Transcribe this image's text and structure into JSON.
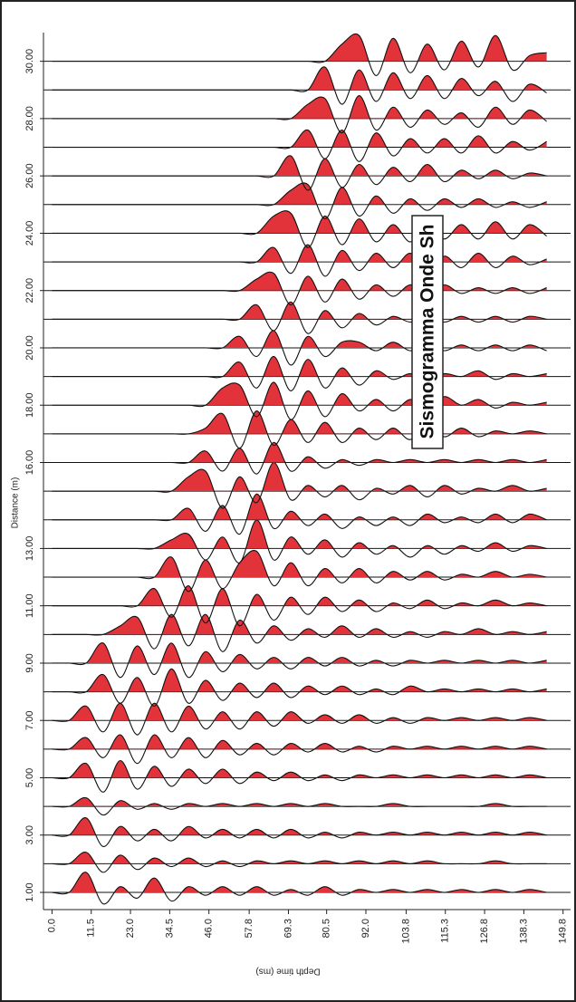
{
  "chart_data": {
    "type": "seismogram",
    "title": "Sismogramma Onde Sh",
    "x_label": "Depth time (ms)",
    "y_label": "Distance (m)",
    "xlim": [
      -2.5,
      152
    ],
    "ylim": [
      0.4,
      31
    ],
    "xticks": [
      {
        "value": 0,
        "label": "0.0"
      },
      11.5,
      {
        "value": 23,
        "label": "23.0"
      },
      34.5,
      {
        "value": 46,
        "label": "46.0"
      },
      57.8,
      69.3,
      80.5,
      {
        "value": 92,
        "label": "92.0"
      },
      103.8,
      115.3,
      126.8,
      138.3,
      149.8
    ],
    "yticks": [
      {
        "value": 1,
        "label": "1.00"
      },
      {
        "value": 3,
        "label": "3.00"
      },
      {
        "value": 5,
        "label": "5.00"
      },
      {
        "value": 7,
        "label": "7.00"
      },
      {
        "value": 9,
        "label": "9.00"
      },
      {
        "value": 11,
        "label": "11.00"
      },
      {
        "value": 13,
        "label": "13.00"
      },
      {
        "value": 16,
        "label": "16.00"
      },
      {
        "value": 18,
        "label": "18.00"
      },
      {
        "value": 20,
        "label": "20.00"
      },
      {
        "value": 22,
        "label": "22.00"
      },
      {
        "value": 24,
        "label": "24.00"
      },
      {
        "value": 26,
        "label": "26.00"
      },
      {
        "value": 28,
        "label": "28.00"
      },
      {
        "value": 30,
        "label": "30.00"
      }
    ],
    "fill_color": "#e2333b",
    "line_color": "#111111",
    "x": [
      0,
      5,
      10,
      15,
      20,
      25,
      30,
      35,
      40,
      45,
      50,
      55,
      60,
      65,
      70,
      75,
      80,
      85,
      90,
      95,
      100,
      105,
      110,
      115,
      120,
      125,
      130,
      135,
      140,
      145
    ],
    "series": [
      {
        "offset": 1,
        "values": [
          0,
          0,
          0.7,
          -0.4,
          0.2,
          -0.2,
          0.5,
          -0.3,
          0.2,
          -0.1,
          0.2,
          -0.1,
          0.2,
          -0.1,
          0.1,
          -0.1,
          0.2,
          -0.1,
          0.1,
          0,
          0.1,
          0,
          0.1,
          0,
          0.1,
          0,
          0.1,
          0,
          0.1,
          0
        ]
      },
      {
        "offset": 2,
        "values": [
          0,
          0,
          0.4,
          -0.3,
          0.3,
          -0.2,
          0.2,
          -0.1,
          0.2,
          -0.1,
          0.1,
          -0.1,
          0.1,
          0,
          0.1,
          0,
          0.1,
          0,
          0.1,
          0,
          0.1,
          0,
          0.1,
          0,
          0,
          0,
          0.1,
          0,
          0,
          0
        ]
      },
      {
        "offset": 3,
        "values": [
          0,
          0,
          0.6,
          -0.4,
          0.3,
          -0.2,
          0.2,
          -0.2,
          0.3,
          -0.1,
          0.2,
          -0.1,
          0.2,
          -0.1,
          0.2,
          -0.1,
          0.1,
          -0.1,
          0.1,
          0,
          0.1,
          0,
          0.1,
          0,
          0.1,
          0,
          0.1,
          0,
          0.1,
          0
        ]
      },
      {
        "offset": 4,
        "values": [
          0,
          0,
          0.3,
          -0.3,
          0.2,
          -0.1,
          0.1,
          -0.1,
          0.1,
          0,
          0.1,
          0,
          0.1,
          0,
          0.1,
          0,
          0.1,
          0,
          0,
          0,
          0.1,
          0,
          0,
          0,
          0,
          0,
          0.1,
          0,
          0,
          0
        ]
      },
      {
        "offset": 5,
        "values": [
          0,
          0,
          0.5,
          -0.5,
          0.6,
          -0.4,
          0.4,
          -0.3,
          0.3,
          -0.2,
          0.3,
          -0.2,
          0.2,
          -0.1,
          0.2,
          -0.1,
          0.1,
          -0.1,
          0.1,
          0,
          0.1,
          0,
          0.1,
          0,
          0.1,
          0,
          0.1,
          0,
          0.1,
          0
        ]
      },
      {
        "offset": 6,
        "values": [
          0,
          0,
          0.4,
          -0.3,
          0.5,
          -0.5,
          0.5,
          -0.3,
          0.4,
          -0.3,
          0.3,
          -0.2,
          0.2,
          -0.2,
          0.2,
          -0.1,
          0.2,
          -0.1,
          0.1,
          -0.1,
          0.1,
          0,
          0.1,
          0,
          0.1,
          0,
          0.1,
          0,
          0.1,
          0
        ]
      },
      {
        "offset": 7,
        "values": [
          0,
          0,
          0.5,
          -0.4,
          0.6,
          -0.5,
          0.6,
          -0.4,
          0.5,
          -0.3,
          0.3,
          -0.3,
          0.3,
          -0.2,
          0.3,
          -0.1,
          0.2,
          -0.1,
          0.2,
          -0.1,
          0.1,
          -0.1,
          0.1,
          0,
          0.1,
          0,
          0.1,
          0,
          0.1,
          0
        ]
      },
      {
        "offset": 8,
        "values": [
          0,
          0,
          0,
          0.6,
          -0.4,
          0.5,
          -0.5,
          0.8,
          -0.4,
          0.4,
          -0.3,
          0.3,
          -0.2,
          0.3,
          -0.2,
          0.2,
          -0.1,
          0.2,
          -0.1,
          0.1,
          -0.1,
          0.2,
          0,
          0.1,
          0,
          0.1,
          0,
          0.1,
          0,
          0.1
        ]
      },
      {
        "offset": 9,
        "values": [
          0,
          0,
          0,
          0.7,
          -0.5,
          0.6,
          -0.4,
          0.7,
          -0.5,
          0.4,
          -0.3,
          0.3,
          -0.2,
          0.2,
          -0.2,
          0.2,
          -0.1,
          0.2,
          -0.1,
          0.1,
          -0.1,
          0.1,
          0,
          0.1,
          0,
          0.1,
          0,
          0.1,
          0,
          0.1
        ]
      },
      {
        "offset": 10,
        "values": [
          0,
          0,
          0,
          0,
          0.3,
          0.6,
          -0.5,
          0.7,
          -0.4,
          0.7,
          -0.6,
          0.5,
          -0.3,
          0.3,
          -0.2,
          0.2,
          -0.1,
          0.3,
          -0.1,
          0.2,
          -0.1,
          0.1,
          -0.1,
          0.1,
          0,
          0.2,
          0,
          0.1,
          0,
          0.1
        ]
      },
      {
        "offset": 11,
        "values": [
          0,
          0,
          0,
          0,
          0,
          0,
          0.6,
          -0.4,
          0.7,
          -0.6,
          0.6,
          -0.7,
          0.4,
          -0.5,
          0.3,
          -0.3,
          0.3,
          -0.2,
          0.2,
          -0.2,
          0.1,
          -0.1,
          0.2,
          -0.1,
          0.1,
          0,
          0.2,
          0,
          0.1,
          0
        ]
      },
      {
        "offset": 12,
        "values": [
          0,
          0,
          0,
          0,
          0,
          0,
          0,
          0.7,
          -0.5,
          0.6,
          -0.4,
          0.5,
          0.9,
          -0.3,
          0.5,
          -0.3,
          0.3,
          -0.2,
          0.3,
          -0.2,
          0.2,
          -0.1,
          0.2,
          -0.1,
          0.1,
          0,
          0.2,
          0,
          0.1,
          0
        ]
      },
      {
        "offset": 13,
        "values": [
          0,
          0,
          0,
          0,
          0,
          0,
          0,
          0.3,
          0.5,
          -0.4,
          0.4,
          -0.5,
          1.0,
          -0.4,
          0.4,
          -0.2,
          0.3,
          -0.3,
          0.2,
          -0.2,
          0.1,
          -0.3,
          0.1,
          -0.2,
          0.1,
          -0.1,
          0.2,
          -0.1,
          0.1,
          0
        ]
      },
      {
        "offset": 14,
        "values": [
          0,
          0,
          0,
          0,
          0,
          0,
          0,
          0,
          0.4,
          -0.4,
          0.5,
          -0.5,
          0.9,
          -0.3,
          0.3,
          -0.2,
          0.2,
          -0.3,
          0.1,
          -0.2,
          0.1,
          -0.2,
          0.2,
          -0.1,
          0.1,
          -0.1,
          0.2,
          -0.1,
          0.2,
          0
        ]
      },
      {
        "offset": 15,
        "values": [
          0,
          0,
          0,
          0,
          0,
          0,
          0,
          0,
          0.5,
          0.7,
          -0.6,
          0.5,
          -0.4,
          1.0,
          -0.3,
          0.2,
          -0.2,
          0.2,
          -0.3,
          0.1,
          -0.1,
          0.2,
          -0.2,
          0.2,
          -0.1,
          0.1,
          0,
          0.2,
          0,
          0.1
        ]
      },
      {
        "offset": 16,
        "values": [
          0,
          0,
          0,
          0,
          0,
          0,
          0,
          0,
          0,
          0.4,
          -0.3,
          0.5,
          -0.4,
          0.7,
          -0.3,
          0.2,
          -0.2,
          0.1,
          -0.1,
          0.1,
          0,
          0.1,
          0,
          0.1,
          0,
          0.1,
          0,
          0.1,
          0,
          0.1
        ]
      },
      {
        "offset": 17,
        "values": [
          0,
          0,
          0,
          0,
          0,
          0,
          0,
          0,
          0,
          0.2,
          0.7,
          -0.5,
          0.8,
          -0.4,
          0.5,
          -0.3,
          0.4,
          -0.3,
          0.2,
          -0.2,
          0.2,
          -0.2,
          0.3,
          -0.1,
          0.2,
          -0.1,
          0.1,
          0,
          0.1,
          0
        ]
      },
      {
        "offset": 18,
        "values": [
          0,
          0,
          0,
          0,
          0,
          0,
          0,
          0,
          0,
          0,
          0.6,
          0.7,
          -0.4,
          0.8,
          -0.5,
          0.5,
          -0.4,
          0.4,
          -0.2,
          0.2,
          -0.2,
          0.2,
          -0.1,
          0.3,
          0,
          0.2,
          -0.1,
          0.1,
          0,
          0.1
        ]
      },
      {
        "offset": 19,
        "values": [
          0,
          0,
          0,
          0,
          0,
          0,
          0,
          0,
          0,
          0,
          0,
          0.5,
          -0.4,
          0.7,
          -0.5,
          0.6,
          -0.4,
          0.3,
          -0.3,
          0.2,
          -0.1,
          0.1,
          -0.1,
          0.1,
          0,
          0.2,
          -0.1,
          0.1,
          0,
          0.1
        ]
      },
      {
        "offset": 20,
        "values": [
          0,
          0,
          0,
          0,
          0,
          0,
          0,
          0,
          0,
          0,
          0,
          0.4,
          -0.3,
          0.6,
          -0.6,
          0.4,
          -0.3,
          0.2,
          0.2,
          -0.1,
          0.2,
          -0.1,
          0.1,
          -0.1,
          0.1,
          -0.1,
          0.1,
          -0.1,
          0.1,
          -0.1
        ]
      },
      {
        "offset": 21,
        "values": [
          0,
          0,
          0,
          0,
          0,
          0,
          0,
          0,
          0,
          0,
          0,
          0,
          0.5,
          -0.4,
          0.6,
          -0.5,
          0.3,
          -0.3,
          0.2,
          -0.2,
          0.1,
          -0.1,
          0.1,
          -0.1,
          0.1,
          -0.1,
          0.1,
          -0.1,
          0.1,
          0
        ]
      },
      {
        "offset": 22,
        "values": [
          0,
          0,
          0,
          0,
          0,
          0,
          0,
          0,
          0,
          0,
          0,
          0,
          0.4,
          0.6,
          -0.5,
          0.5,
          -0.4,
          0.4,
          -0.3,
          0.2,
          -0.2,
          0.2,
          -0.1,
          0.2,
          -0.1,
          0.1,
          -0.1,
          0.1,
          -0.1,
          0.1
        ]
      },
      {
        "offset": 23,
        "values": [
          0,
          0,
          0,
          0,
          0,
          0,
          0,
          0,
          0,
          0,
          0,
          0,
          0,
          0.5,
          -0.4,
          0.6,
          -0.5,
          0.4,
          -0.3,
          0.3,
          -0.2,
          0.3,
          -0.3,
          0.2,
          -0.2,
          0.3,
          -0.2,
          0.2,
          -0.1,
          0.1
        ]
      },
      {
        "offset": 24,
        "values": [
          0,
          0,
          0,
          0,
          0,
          0,
          0,
          0,
          0,
          0,
          0,
          0,
          0,
          0.6,
          0.7,
          -0.5,
          0.6,
          -0.4,
          0.5,
          -0.3,
          0.3,
          -0.3,
          0.3,
          -0.2,
          0.3,
          -0.2,
          0.4,
          -0.2,
          0.3,
          -0.1
        ]
      },
      {
        "offset": 25,
        "values": [
          0,
          0,
          0,
          0,
          0,
          0,
          0,
          0,
          0,
          0,
          0,
          0,
          0,
          0,
          0.5,
          0.7,
          -0.5,
          0.6,
          -0.4,
          0.3,
          -0.3,
          0.2,
          -0.2,
          0.2,
          -0.1,
          0.2,
          -0.1,
          0.1,
          -0.1,
          0.1
        ]
      },
      {
        "offset": 26,
        "values": [
          0,
          0,
          0,
          0,
          0,
          0,
          0,
          0,
          0,
          0,
          0,
          0,
          0,
          0,
          0.7,
          -0.5,
          0.6,
          -0.4,
          0.4,
          -0.3,
          0.3,
          -0.2,
          0.4,
          -0.2,
          0.2,
          -0.1,
          0.2,
          -0.1,
          0.1,
          0
        ]
      },
      {
        "offset": 27,
        "values": [
          0,
          0,
          0,
          0,
          0,
          0,
          0,
          0,
          0,
          0,
          0,
          0,
          0,
          0,
          0,
          0.6,
          -0.4,
          0.6,
          -0.5,
          0.5,
          -0.3,
          0.3,
          -0.2,
          0.3,
          -0.2,
          0.4,
          -0.2,
          0.2,
          -0.1,
          0.2
        ]
      },
      {
        "offset": 28,
        "values": [
          0,
          0,
          0,
          0,
          0,
          0,
          0,
          0,
          0,
          0,
          0,
          0,
          0,
          0,
          0,
          0.5,
          0.7,
          -0.5,
          0.8,
          -0.4,
          0.4,
          -0.3,
          0.3,
          -0.2,
          0.2,
          -0.3,
          0.4,
          -0.2,
          0.3,
          -0.1
        ]
      },
      {
        "offset": 29,
        "values": [
          0,
          0,
          0,
          0,
          0,
          0,
          0,
          0,
          0,
          0,
          0,
          0,
          0,
          0,
          0,
          0,
          0.8,
          -0.5,
          0.7,
          -0.4,
          0.6,
          -0.3,
          0.5,
          -0.3,
          0.4,
          -0.2,
          0.3,
          -0.4,
          0.2,
          -0.1
        ]
      },
      {
        "offset": 30,
        "values": [
          0,
          0,
          0,
          0,
          0,
          0,
          0,
          0,
          0,
          0,
          0,
          0,
          0,
          0,
          0,
          0,
          0,
          0.6,
          0.9,
          -0.5,
          0.8,
          -0.4,
          0.6,
          -0.3,
          0.7,
          -0.2,
          0.9,
          -0.3,
          0.2,
          0.3
        ]
      }
    ]
  }
}
